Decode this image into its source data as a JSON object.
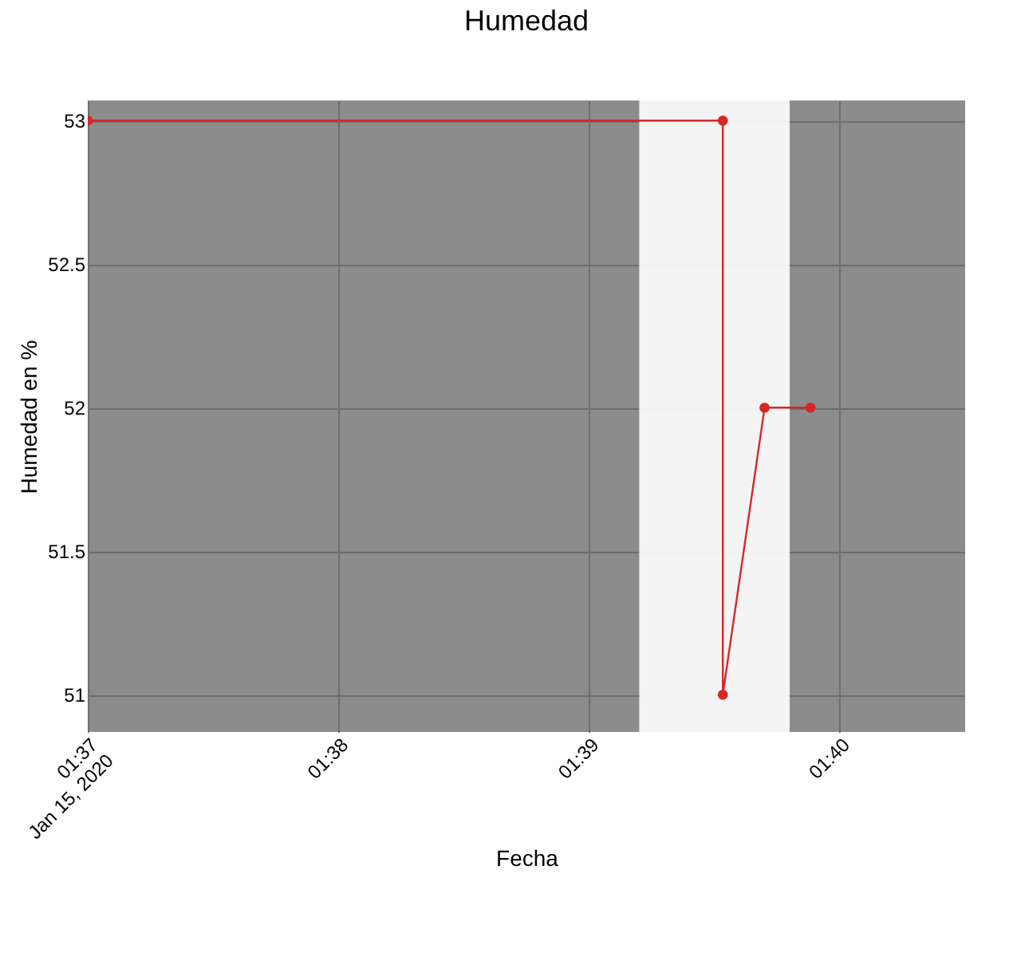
{
  "chart_data": {
    "type": "line",
    "title": "Humedad",
    "xlabel": "Fecha",
    "ylabel": "Humedad en %",
    "x": [
      "2020-01-15T01:37:00",
      "2020-01-15T01:39:32",
      "2020-01-15T01:39:32",
      "2020-01-15T01:39:42",
      "2020-01-15T01:39:53"
    ],
    "series": [
      {
        "color": "#d62728",
        "values": [
          53,
          53,
          51,
          52,
          52
        ]
      }
    ],
    "xlim": [
      "2020-01-15T01:37:00",
      "2020-01-15T01:40:30"
    ],
    "xticks": [
      {
        "value": "2020-01-15T01:37",
        "label": "01:37\nJan 15, 2020"
      },
      {
        "value": "2020-01-15T01:38",
        "label": "01:38"
      },
      {
        "value": "2020-01-15T01:39",
        "label": "01:39"
      },
      {
        "value": "2020-01-15T01:40",
        "label": "01:40"
      }
    ],
    "ylim": [
      50.87,
      53.07
    ],
    "yticks": [
      51,
      51.5,
      52,
      52.5,
      53
    ],
    "bands": [
      {
        "axis": "x",
        "from": "2020-01-15T01:39:12",
        "to": "2020-01-15T01:39:48",
        "color": "#ffffff"
      }
    ],
    "grid": true,
    "marker": "circle",
    "line_style": "solid"
  }
}
